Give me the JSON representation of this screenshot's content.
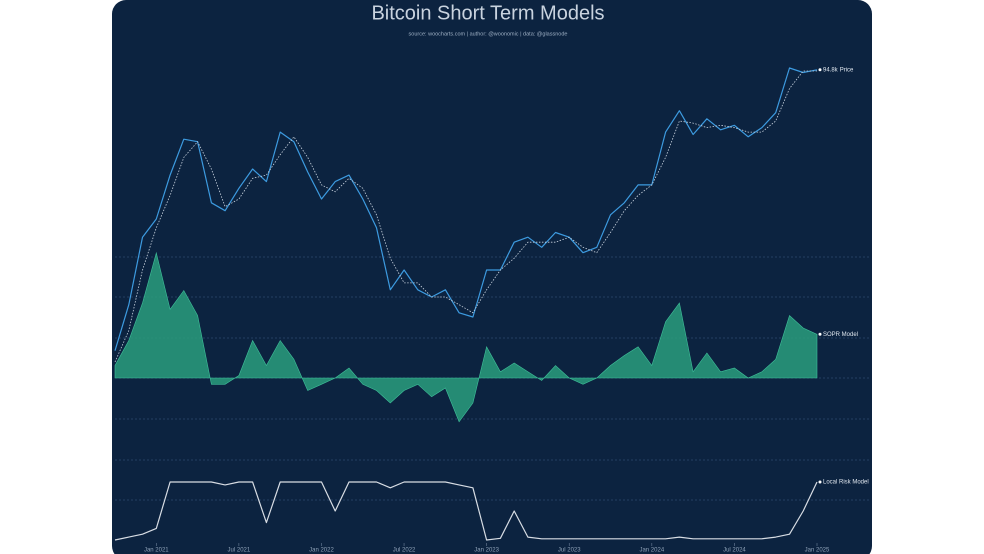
{
  "chart_data": {
    "type": "line",
    "title": "Bitcoin Short Term Models",
    "subtitle": "source: woocharts.com | author: @woonomic | data: @glassnode",
    "log_scale": true,
    "x": [
      "2020-10",
      "2020-11",
      "2020-12",
      "2021-01",
      "2021-02",
      "2021-03",
      "2021-04",
      "2021-05",
      "2021-06",
      "2021-07",
      "2021-08",
      "2021-09",
      "2021-10",
      "2021-11",
      "2021-12",
      "2022-01",
      "2022-02",
      "2022-03",
      "2022-04",
      "2022-05",
      "2022-06",
      "2022-07",
      "2022-08",
      "2022-09",
      "2022-10",
      "2022-11",
      "2022-12",
      "2023-01",
      "2023-02",
      "2023-03",
      "2023-04",
      "2023-05",
      "2023-06",
      "2023-07",
      "2023-08",
      "2023-09",
      "2023-10",
      "2023-11",
      "2023-12",
      "2024-01",
      "2024-02",
      "2024-03",
      "2024-04",
      "2024-05",
      "2024-06",
      "2024-07",
      "2024-08",
      "2024-09",
      "2024-10",
      "2024-11",
      "2024-12",
      "2025-01"
    ],
    "xticks": [
      {
        "value": "2021-01",
        "label": "Jan 2021"
      },
      {
        "value": "2021-07",
        "label": "Jul 2021"
      },
      {
        "value": "2022-01",
        "label": "Jan 2022"
      },
      {
        "value": "2022-07",
        "label": "Jul 2022"
      },
      {
        "value": "2023-01",
        "label": "Jan 2023"
      },
      {
        "value": "2023-07",
        "label": "Jul 2023"
      },
      {
        "value": "2024-01",
        "label": "Jan 2024"
      },
      {
        "value": "2024-07",
        "label": "Jul 2024"
      },
      {
        "value": "2025-01",
        "label": "Jan 2025"
      }
    ],
    "series": [
      {
        "name": "Price",
        "panel": "price",
        "style": "line",
        "color": "#3d9be0",
        "values": [
          13,
          18,
          29,
          33,
          45,
          58,
          57,
          37,
          35,
          41,
          47,
          43,
          61,
          57,
          46,
          38,
          43,
          45,
          38,
          31,
          20,
          23,
          20,
          19,
          20,
          17,
          16.5,
          23,
          23,
          28,
          29,
          27,
          30,
          29,
          26,
          27,
          34,
          37,
          42,
          42,
          61,
          71,
          60,
          67,
          62,
          64,
          59,
          63,
          70,
          96,
          93,
          94.8
        ],
        "value_labels": [
          null,
          null,
          null,
          null,
          null,
          null,
          null,
          null,
          null,
          null,
          null,
          null,
          null,
          null,
          null,
          null,
          null,
          null,
          null,
          null,
          null,
          null,
          null,
          null,
          null,
          null,
          null,
          null,
          null,
          null,
          null,
          null,
          null,
          null,
          null,
          null,
          null,
          null,
          null,
          null,
          null,
          null,
          null,
          null,
          null,
          null,
          null,
          null,
          null,
          null,
          null,
          "94.8k"
        ]
      },
      {
        "panel": "price",
        "style": "dotted",
        "color": "#c9d3df",
        "values": [
          12,
          15,
          23,
          31,
          39,
          51,
          57,
          47,
          36,
          38,
          44,
          45,
          52,
          59,
          51,
          42,
          40,
          44,
          41,
          34,
          25,
          21,
          21,
          19,
          19,
          18,
          17,
          20,
          23,
          25,
          28,
          28,
          28,
          29,
          27,
          26,
          30,
          35,
          39,
          42,
          51,
          66,
          65,
          63,
          64,
          63,
          61,
          61,
          66,
          83,
          94,
          94
        ]
      },
      {
        "name": "SOPR Model",
        "panel": "sopr",
        "style": "area",
        "color": "#2a9d7e",
        "values": [
          0.1,
          0.3,
          0.6,
          1.0,
          0.55,
          0.7,
          0.5,
          -0.05,
          -0.05,
          0.02,
          0.3,
          0.1,
          0.3,
          0.15,
          -0.1,
          -0.05,
          0.0,
          0.08,
          -0.05,
          -0.1,
          -0.2,
          -0.1,
          -0.05,
          -0.15,
          -0.08,
          -0.35,
          -0.2,
          0.25,
          0.05,
          0.12,
          0.05,
          -0.02,
          0.1,
          0.0,
          -0.05,
          0.0,
          0.1,
          0.18,
          0.25,
          0.1,
          0.45,
          0.6,
          0.05,
          0.2,
          0.05,
          0.08,
          0.0,
          0.05,
          0.15,
          0.5,
          0.4,
          0.35
        ]
      },
      {
        "name": "Local Risk Model",
        "panel": "risk",
        "style": "line",
        "color": "#d8dde4",
        "values": [
          0,
          0.05,
          0.1,
          0.2,
          1.0,
          1.0,
          1.0,
          1.0,
          0.95,
          1.0,
          1.0,
          0.3,
          1.0,
          1.0,
          1.0,
          1.0,
          0.5,
          1.0,
          1.0,
          1.0,
          0.9,
          1.0,
          1.0,
          1.0,
          1.0,
          0.95,
          0.9,
          0.0,
          0.03,
          0.5,
          0.05,
          0.02,
          0.02,
          0.02,
          0.02,
          0.02,
          0.02,
          0.02,
          0.02,
          0.02,
          0.02,
          0.05,
          0.02,
          0.02,
          0.02,
          0.02,
          0.02,
          0.02,
          0.05,
          0.1,
          0.5,
          1.0
        ]
      }
    ]
  }
}
